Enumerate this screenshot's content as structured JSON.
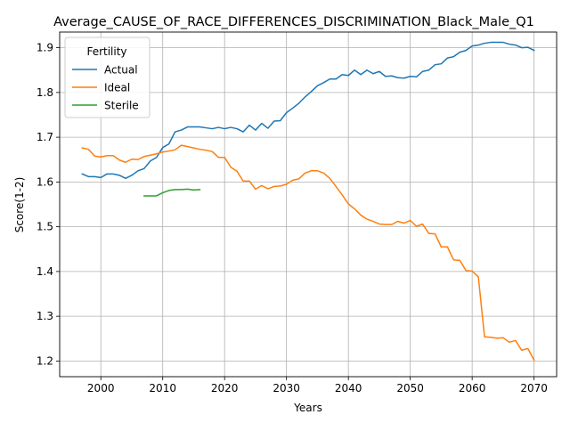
{
  "chart_data": {
    "type": "line",
    "title": "Average_CAUSE_OF_RACE_DIFFERENCES_DISCRIMINATION_Black_Male_Q1",
    "xlabel": "Years",
    "ylabel": "Score(1-2)",
    "xlim": [
      1993.35,
      2073.65
    ],
    "ylim": [
      1.165,
      1.935
    ],
    "xticks": [
      2000,
      2010,
      2020,
      2030,
      2040,
      2050,
      2060,
      2070
    ],
    "yticks": [
      1.2,
      1.3,
      1.4,
      1.5,
      1.6,
      1.7,
      1.8,
      1.9
    ],
    "xtick_labels": [
      "2000",
      "2010",
      "2020",
      "2030",
      "2040",
      "2050",
      "2060",
      "2070"
    ],
    "ytick_labels": [
      "1.2",
      "1.3",
      "1.4",
      "1.5",
      "1.6",
      "1.7",
      "1.8",
      "1.9"
    ],
    "grid": true,
    "legend": {
      "title": "Fertility",
      "position": "top-left"
    },
    "series": [
      {
        "name": "Actual",
        "color": "#1f77b4",
        "x": [
          1997,
          1998,
          1999,
          2000,
          2001,
          2002,
          2003,
          2004,
          2005,
          2006,
          2007,
          2008,
          2009,
          2010,
          2011,
          2012,
          2013,
          2014,
          2015,
          2016,
          2017,
          2018,
          2019,
          2020,
          2021,
          2022,
          2023,
          2024,
          2025,
          2026,
          2027,
          2028,
          2029,
          2030,
          2031,
          2032,
          2033,
          2034,
          2035,
          2036,
          2037,
          2038,
          2039,
          2040,
          2041,
          2042,
          2043,
          2044,
          2045,
          2046,
          2047,
          2048,
          2049,
          2050,
          2051,
          2052,
          2053,
          2054,
          2055,
          2056,
          2057,
          2058,
          2059,
          2060,
          2061,
          2062,
          2063,
          2064,
          2065,
          2066,
          2067,
          2068,
          2069,
          2070
        ],
        "values": [
          1.618,
          1.612,
          1.612,
          1.61,
          1.618,
          1.618,
          1.615,
          1.608,
          1.615,
          1.625,
          1.63,
          1.647,
          1.655,
          1.677,
          1.685,
          1.712,
          1.716,
          1.723,
          1.723,
          1.723,
          1.721,
          1.719,
          1.722,
          1.719,
          1.722,
          1.719,
          1.712,
          1.727,
          1.716,
          1.731,
          1.72,
          1.736,
          1.737,
          1.755,
          1.765,
          1.776,
          1.79,
          1.802,
          1.815,
          1.822,
          1.83,
          1.83,
          1.84,
          1.838,
          1.85,
          1.84,
          1.85,
          1.842,
          1.847,
          1.836,
          1.837,
          1.833,
          1.832,
          1.836,
          1.835,
          1.847,
          1.85,
          1.862,
          1.864,
          1.877,
          1.88,
          1.89,
          1.894,
          1.904,
          1.906,
          1.91,
          1.912,
          1.912,
          1.912,
          1.908,
          1.906,
          1.9,
          1.901,
          1.894
        ]
      },
      {
        "name": "Ideal",
        "color": "#ff7f0e",
        "x": [
          1997,
          1998,
          1999,
          2000,
          2001,
          2002,
          2003,
          2004,
          2005,
          2006,
          2007,
          2008,
          2009,
          2010,
          2011,
          2012,
          2013,
          2014,
          2015,
          2016,
          2017,
          2018,
          2019,
          2020,
          2021,
          2022,
          2023,
          2024,
          2025,
          2026,
          2027,
          2028,
          2029,
          2030,
          2031,
          2032,
          2033,
          2034,
          2035,
          2036,
          2037,
          2038,
          2039,
          2040,
          2041,
          2042,
          2043,
          2044,
          2045,
          2046,
          2047,
          2048,
          2049,
          2050,
          2051,
          2052,
          2053,
          2054,
          2055,
          2056,
          2057,
          2058,
          2059,
          2060,
          2061,
          2062,
          2063,
          2064,
          2065,
          2066,
          2067,
          2068,
          2069,
          2070
        ],
        "values": [
          1.676,
          1.673,
          1.658,
          1.656,
          1.659,
          1.659,
          1.649,
          1.644,
          1.651,
          1.65,
          1.657,
          1.66,
          1.663,
          1.667,
          1.669,
          1.672,
          1.682,
          1.679,
          1.676,
          1.673,
          1.671,
          1.668,
          1.655,
          1.655,
          1.633,
          1.624,
          1.602,
          1.602,
          1.584,
          1.592,
          1.585,
          1.59,
          1.591,
          1.595,
          1.604,
          1.607,
          1.62,
          1.625,
          1.625,
          1.62,
          1.608,
          1.59,
          1.571,
          1.551,
          1.54,
          1.526,
          1.517,
          1.512,
          1.506,
          1.505,
          1.505,
          1.512,
          1.508,
          1.514,
          1.501,
          1.506,
          1.485,
          1.484,
          1.455,
          1.455,
          1.426,
          1.425,
          1.402,
          1.401,
          1.388,
          1.254,
          1.253,
          1.251,
          1.252,
          1.242,
          1.246,
          1.224,
          1.228,
          1.202
        ]
      },
      {
        "name": "Sterile",
        "color": "#2ca02c",
        "x": [
          2007,
          2008,
          2009,
          2010,
          2011,
          2012,
          2013,
          2014,
          2015,
          2016
        ],
        "values": [
          1.569,
          1.569,
          1.569,
          1.576,
          1.581,
          1.583,
          1.583,
          1.584,
          1.582,
          1.583
        ]
      }
    ]
  }
}
